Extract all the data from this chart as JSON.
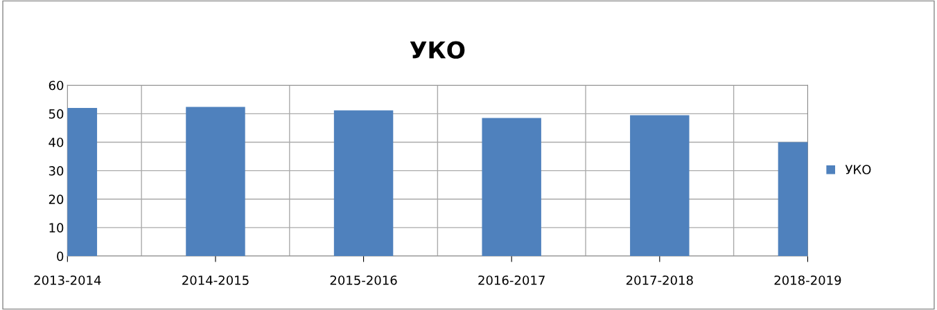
{
  "chart_data": {
    "type": "bar",
    "title": "УКО",
    "categories": [
      "2013-2014",
      "2014-2015",
      "2015-2016",
      "2016-2017",
      "2017-2018",
      "2018-2019"
    ],
    "series": [
      {
        "name": "УКО",
        "color": "#4f81bd",
        "values": [
          52,
          52.4,
          51.2,
          48.5,
          49.5,
          40
        ]
      }
    ],
    "ylim": [
      0,
      60
    ],
    "yticks": [
      0,
      10,
      20,
      30,
      40,
      50,
      60
    ],
    "grid": true,
    "legend": "right"
  }
}
